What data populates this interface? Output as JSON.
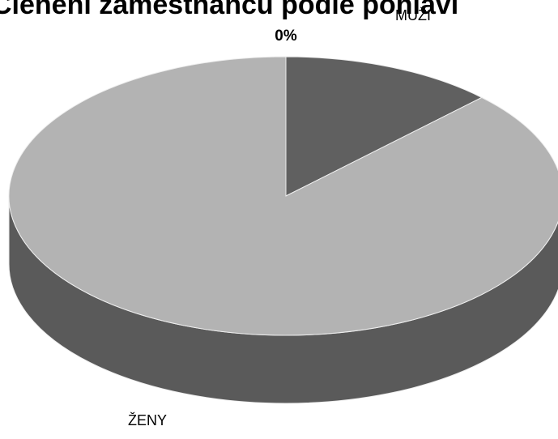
{
  "chart_data": {
    "type": "pie3d",
    "title": "Členění zaměstnanců podle pohlaví",
    "categories": [
      "MUŽI",
      "ŽENY"
    ],
    "values": [
      12.5,
      87.5
    ],
    "colors": [
      "#606060",
      "#b3b3b3"
    ],
    "side_color": "#5a5a5a",
    "annotations": [
      "0%"
    ]
  }
}
